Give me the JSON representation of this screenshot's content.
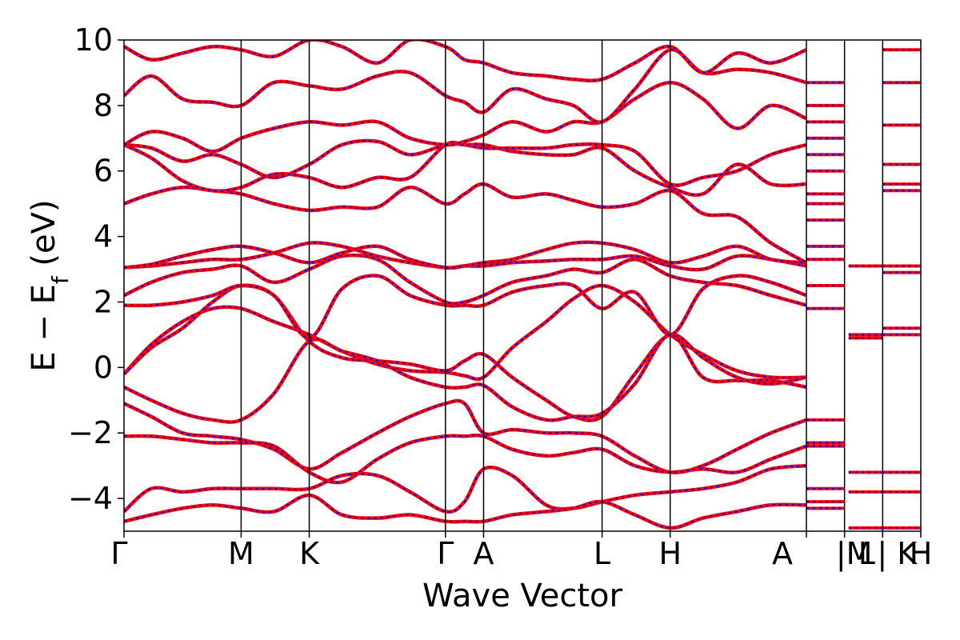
{
  "chart_data": {
    "type": "line",
    "title": "",
    "xlabel": "Wave Vector",
    "ylabel_main": "E − E",
    "ylabel_sub": "f",
    "ylabel_unit": " (eV)",
    "ylim": [
      -5,
      10
    ],
    "yticks": [
      -4,
      -2,
      0,
      2,
      4,
      6,
      8,
      10
    ],
    "ytick_labels": [
      "−4",
      "−2",
      "0",
      "2",
      "4",
      "6",
      "8",
      "10"
    ],
    "kpoint_labels": [
      "Γ",
      "M",
      "K",
      "Γ",
      "A",
      "L",
      "H",
      "A",
      "|M",
      "L",
      "| K",
      "H"
    ],
    "kpoint_positions": [
      0,
      0.86,
      1.36,
      2.36,
      2.64,
      3.51,
      4.01,
      5.01,
      5.29,
      5.57,
      5.57,
      5.85
    ],
    "grid": false,
    "colors": {
      "band_a": "#ff0000",
      "band_b": "#0000ff"
    },
    "band_a_style": "solid red",
    "band_b_style": "dashed blue",
    "series": [
      {
        "x": [
          0,
          0.2,
          0.43,
          0.65,
          0.86,
          1.1,
          1.36,
          1.6,
          1.86,
          2.1,
          2.36,
          2.5,
          2.64,
          2.85,
          3.1,
          3.3,
          3.51,
          3.75,
          4.01,
          4.25,
          4.5,
          4.75,
          5.01
        ],
        "y": [
          -0.2,
          0.7,
          1.4,
          1.8,
          1.8,
          1.4,
          1.0,
          0.5,
          0.1,
          -0.1,
          -0.15,
          -0.25,
          -0.3,
          0.6,
          1.4,
          2.1,
          2.5,
          2.0,
          1.0,
          0.4,
          -0.1,
          -0.3,
          -0.3
        ]
      },
      {
        "x": [
          0,
          0.2,
          0.43,
          0.65,
          0.86,
          1.1,
          1.36,
          1.6,
          1.86,
          2.1,
          2.36,
          2.5,
          2.64,
          2.85,
          3.1,
          3.3,
          3.51,
          3.75,
          4.01,
          4.25,
          4.5,
          4.75,
          5.01
        ],
        "y": [
          -0.2,
          0.6,
          1.2,
          2.0,
          2.5,
          2.2,
          0.8,
          0.3,
          0.2,
          0.1,
          -0.1,
          0.2,
          0.4,
          -0.3,
          -1.0,
          -1.5,
          -1.5,
          -0.2,
          1.0,
          0.3,
          -0.3,
          -0.5,
          -0.3
        ]
      },
      {
        "x": [
          0,
          0.2,
          0.43,
          0.65,
          0.86,
          1.1,
          1.36,
          1.6,
          1.86,
          2.1,
          2.36,
          2.5,
          2.64,
          2.85,
          3.1,
          3.3,
          3.51,
          3.75,
          4.01,
          4.25,
          4.5,
          4.75,
          5.01
        ],
        "y": [
          1.9,
          1.9,
          2.0,
          2.2,
          2.5,
          2.2,
          0.9,
          2.4,
          2.8,
          2.2,
          1.9,
          1.9,
          1.9,
          2.3,
          2.5,
          2.5,
          1.8,
          2.3,
          1.0,
          2.4,
          2.8,
          2.6,
          2.2
        ]
      },
      {
        "x": [
          0,
          0.2,
          0.43,
          0.65,
          0.86,
          1.1,
          1.36,
          1.6,
          1.86,
          2.1,
          2.36,
          2.5,
          2.64,
          2.85,
          3.1,
          3.3,
          3.51,
          3.75,
          4.01,
          4.25,
          4.5,
          4.75,
          5.01
        ],
        "y": [
          2.2,
          2.6,
          2.9,
          3.0,
          3.1,
          2.6,
          3.0,
          3.4,
          3.3,
          2.6,
          2.0,
          2.0,
          2.2,
          2.6,
          2.8,
          3.0,
          2.9,
          3.3,
          2.8,
          2.6,
          2.5,
          2.2,
          1.9
        ]
      },
      {
        "x": [
          0,
          0.2,
          0.43,
          0.65,
          0.86,
          1.1,
          1.36,
          1.6,
          1.86,
          2.1,
          2.36,
          2.5,
          2.64,
          2.85,
          3.1,
          3.3,
          3.51,
          3.75,
          4.01,
          4.25,
          4.5,
          4.75,
          5.01
        ],
        "y": [
          3.05,
          3.1,
          3.2,
          3.3,
          3.3,
          3.5,
          3.8,
          3.7,
          3.4,
          3.2,
          3.05,
          3.1,
          3.1,
          3.2,
          3.25,
          3.3,
          3.3,
          3.4,
          3.1,
          3.0,
          3.4,
          3.3,
          3.1
        ]
      },
      {
        "x": [
          0,
          0.2,
          0.43,
          0.65,
          0.86,
          1.1,
          1.36,
          1.6,
          1.86,
          2.1,
          2.36,
          2.5,
          2.64,
          2.85,
          3.1,
          3.3,
          3.51,
          3.75,
          4.01,
          4.25,
          4.5,
          4.75,
          5.01
        ],
        "y": [
          3.05,
          3.15,
          3.4,
          3.6,
          3.7,
          3.5,
          3.2,
          3.5,
          3.7,
          3.3,
          3.05,
          3.1,
          3.2,
          3.3,
          3.6,
          3.8,
          3.8,
          3.6,
          3.2,
          3.4,
          3.7,
          3.3,
          3.2
        ]
      },
      {
        "x": [
          0,
          0.2,
          0.43,
          0.65,
          0.86,
          1.1,
          1.36,
          1.6,
          1.86,
          2.1,
          2.36,
          2.5,
          2.64,
          2.85,
          3.1,
          3.3,
          3.51,
          3.75,
          4.01,
          4.25,
          4.5,
          4.75,
          5.01
        ],
        "y": [
          5.0,
          5.3,
          5.5,
          5.4,
          5.3,
          5.0,
          4.8,
          4.9,
          4.9,
          5.5,
          5.0,
          5.3,
          5.6,
          5.2,
          5.3,
          5.1,
          4.9,
          5.0,
          5.4,
          4.7,
          4.6,
          3.8,
          3.2
        ]
      },
      {
        "x": [
          0,
          0.2,
          0.43,
          0.65,
          0.86,
          1.1,
          1.36,
          1.6,
          1.86,
          2.1,
          2.36,
          2.5,
          2.64,
          2.85,
          3.1,
          3.3,
          3.51,
          3.75,
          4.01,
          4.25,
          4.5,
          4.75,
          5.01
        ],
        "y": [
          6.8,
          6.4,
          5.7,
          5.4,
          5.5,
          5.9,
          5.8,
          5.5,
          5.8,
          5.8,
          6.8,
          6.8,
          6.8,
          6.6,
          6.5,
          6.5,
          6.7,
          6.0,
          5.5,
          5.3,
          6.2,
          5.6,
          5.6
        ]
      },
      {
        "x": [
          0,
          0.2,
          0.43,
          0.65,
          0.86,
          1.1,
          1.36,
          1.6,
          1.86,
          2.1,
          2.36,
          2.5,
          2.64,
          2.85,
          3.1,
          3.3,
          3.51,
          3.75,
          4.01,
          4.25,
          4.5,
          4.75,
          5.01
        ],
        "y": [
          6.8,
          6.7,
          6.3,
          6.5,
          6.2,
          5.8,
          6.2,
          6.8,
          6.9,
          6.5,
          6.8,
          6.8,
          6.7,
          6.7,
          6.7,
          6.8,
          6.8,
          6.6,
          5.6,
          5.8,
          6.0,
          6.5,
          6.8
        ]
      },
      {
        "x": [
          0,
          0.2,
          0.43,
          0.65,
          0.86,
          1.1,
          1.36,
          1.6,
          1.86,
          2.1,
          2.36,
          2.5,
          2.64,
          2.85,
          3.1,
          3.3,
          3.51,
          3.75,
          4.01,
          4.25,
          4.5,
          4.75,
          5.01
        ],
        "y": [
          6.8,
          7.2,
          7.0,
          6.6,
          7.0,
          7.3,
          7.5,
          7.4,
          7.5,
          7.0,
          6.8,
          6.9,
          7.1,
          7.5,
          7.2,
          7.5,
          7.5,
          8.2,
          8.7,
          8.2,
          7.3,
          8.0,
          7.6
        ]
      },
      {
        "x": [
          0,
          0.2,
          0.43,
          0.65,
          0.86,
          1.1,
          1.36,
          1.6,
          1.86,
          2.1,
          2.36,
          2.5,
          2.64,
          2.85,
          3.1,
          3.3,
          3.51,
          3.75,
          4.01,
          4.25,
          4.5,
          4.75,
          5.01
        ],
        "y": [
          8.3,
          8.9,
          8.2,
          8.1,
          8.0,
          8.7,
          8.6,
          8.5,
          8.9,
          9.0,
          8.3,
          8.1,
          7.8,
          8.5,
          8.2,
          8.0,
          7.5,
          8.5,
          9.7,
          9.0,
          9.1,
          9.0,
          8.7
        ]
      },
      {
        "x": [
          0,
          0.2,
          0.43,
          0.65,
          0.86,
          1.1,
          1.36,
          1.6,
          1.86,
          2.1,
          2.36,
          2.5,
          2.64,
          2.85,
          3.1,
          3.3,
          3.51,
          3.75,
          4.01,
          4.25,
          4.5,
          4.75,
          5.01
        ],
        "y": [
          9.8,
          9.4,
          9.6,
          9.8,
          9.7,
          9.5,
          10.0,
          9.8,
          9.3,
          10.0,
          9.8,
          9.4,
          9.3,
          9.0,
          8.9,
          8.8,
          8.8,
          9.3,
          9.8,
          9.0,
          9.6,
          9.3,
          9.7
        ]
      },
      {
        "x": [
          0,
          0.2,
          0.43,
          0.65,
          0.86,
          1.1,
          1.36,
          1.6,
          1.86,
          2.1,
          2.36,
          2.5,
          2.64,
          2.85,
          3.1,
          3.3,
          3.51,
          3.75,
          4.01,
          4.25,
          4.5,
          4.75,
          5.01
        ],
        "y": [
          -0.6,
          -1.0,
          -1.4,
          -1.6,
          -1.6,
          -0.8,
          0.8,
          0.5,
          0.2,
          -0.3,
          -0.6,
          -0.6,
          -0.55,
          -1.2,
          -1.6,
          -1.5,
          -1.4,
          -0.5,
          1.0,
          -0.3,
          -0.4,
          -0.4,
          -0.6
        ]
      },
      {
        "x": [
          0,
          0.2,
          0.43,
          0.65,
          0.86,
          1.1,
          1.36,
          1.6,
          1.86,
          2.1,
          2.36,
          2.5,
          2.64,
          2.85,
          3.1,
          3.3,
          3.51,
          3.75,
          4.01,
          4.25,
          4.5,
          4.75,
          5.01
        ],
        "y": [
          -1.1,
          -1.5,
          -2.0,
          -2.1,
          -2.2,
          -2.5,
          -3.1,
          -2.6,
          -2.0,
          -1.5,
          -1.1,
          -1.1,
          -2.0,
          -1.9,
          -2.0,
          -2.0,
          -2.1,
          -2.7,
          -3.2,
          -3.0,
          -2.5,
          -2.0,
          -1.6
        ]
      },
      {
        "x": [
          0,
          0.2,
          0.43,
          0.65,
          0.86,
          1.1,
          1.36,
          1.6,
          1.86,
          2.1,
          2.36,
          2.5,
          2.64,
          2.85,
          3.1,
          3.3,
          3.51,
          3.75,
          4.01,
          4.25,
          4.5,
          4.75,
          5.01
        ],
        "y": [
          -2.1,
          -2.1,
          -2.2,
          -2.3,
          -2.3,
          -2.4,
          -3.2,
          -3.5,
          -2.8,
          -2.3,
          -2.1,
          -2.1,
          -2.1,
          -2.5,
          -2.7,
          -2.6,
          -2.5,
          -3.0,
          -3.2,
          -3.1,
          -3.2,
          -2.8,
          -2.4
        ]
      },
      {
        "x": [
          0,
          0.2,
          0.43,
          0.65,
          0.86,
          1.1,
          1.36,
          1.6,
          1.86,
          2.1,
          2.36,
          2.5,
          2.64,
          2.85,
          3.1,
          3.3,
          3.51,
          3.75,
          4.01,
          4.25,
          4.5,
          4.75,
          5.01
        ],
        "y": [
          -4.4,
          -3.7,
          -3.8,
          -3.7,
          -3.7,
          -3.7,
          -3.7,
          -3.3,
          -3.3,
          -3.8,
          -4.4,
          -4.1,
          -3.1,
          -3.3,
          -4.2,
          -4.3,
          -4.1,
          -3.9,
          -3.8,
          -3.7,
          -3.5,
          -3.1,
          -3.0
        ]
      },
      {
        "x": [
          0,
          0.2,
          0.43,
          0.65,
          0.86,
          1.1,
          1.36,
          1.6,
          1.86,
          2.1,
          2.36,
          2.5,
          2.64,
          2.85,
          3.1,
          3.3,
          3.51,
          3.75,
          4.01,
          4.25,
          4.5,
          4.75,
          5.01
        ],
        "y": [
          -4.7,
          -4.5,
          -4.3,
          -4.2,
          -4.3,
          -4.4,
          -3.9,
          -4.5,
          -4.6,
          -4.5,
          -4.7,
          -4.7,
          -4.7,
          -4.5,
          -4.4,
          -4.3,
          -4.1,
          -4.5,
          -4.9,
          -4.6,
          -4.4,
          -4.2,
          -4.2
        ]
      }
    ],
    "partial_segment_levels": {
      "A_M_y": [
        -2.3,
        -2.4,
        -1.6,
        1.8,
        2.5,
        3.3,
        3.7,
        4.5,
        5.0,
        5.3,
        6.0,
        6.5,
        7.0,
        7.5,
        8.0,
        8.7,
        -4.1,
        -3.7,
        -4.3
      ],
      "L_K_y": [
        0.9,
        1.0,
        -3.2,
        -3.8,
        -4.9,
        3.1
      ],
      "K_H_y": [
        1.0,
        1.2,
        3.1,
        2.9,
        5.4,
        5.6,
        6.2,
        7.4,
        8.7,
        9.7,
        -3.2,
        -3.8,
        -4.9
      ]
    }
  }
}
